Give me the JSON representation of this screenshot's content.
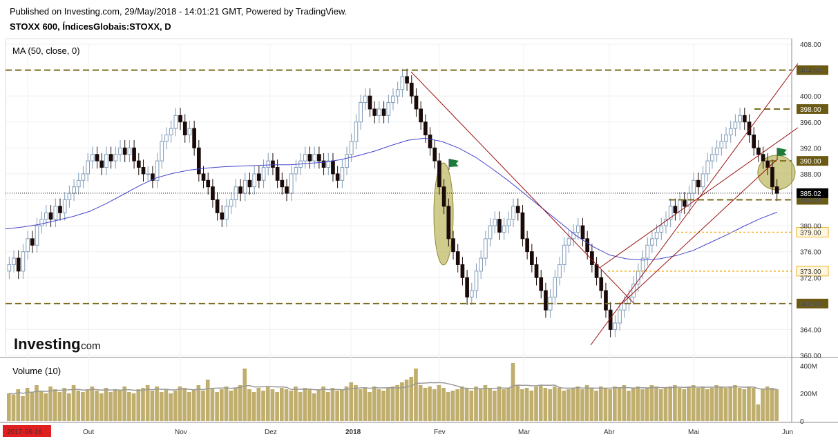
{
  "header": {
    "published": "Published on Investing.com, 29/May/2018 - 14:01:21 GMT, Powered by TradingView.",
    "symbol": "STOXX 600, ÍndicesGlobais:STOXX, D"
  },
  "logo": {
    "brand": "Investing",
    "suffix": ".com"
  },
  "colors": {
    "up_body": "#ffffff",
    "up_edge": "#7f9bb8",
    "down_body": "#1a0a0a",
    "ma": "#4444cc",
    "level_dash": "#7a6a1e",
    "level_dotted": "#f2b020",
    "channel": "#9a1010",
    "volume": "#bfae6e",
    "volume_ma": "#999999",
    "highlight": "#b5b050",
    "flag": "#1d7a3a",
    "current": "#000000"
  },
  "chart_data": [
    {
      "type": "line",
      "panel": "price",
      "title": "",
      "indicator_label": "MA (50, close, 0)",
      "ylim": [
        360,
        408
      ],
      "y_ticks": [
        "408.00",
        "404.00",
        "400.00",
        "396.00",
        "392.00",
        "388.00",
        "384.00",
        "380.00",
        "376.00",
        "372.00",
        "368.00",
        "364.00",
        "360.00"
      ],
      "x_ticks": [
        "2017-06-16",
        "Out",
        "Nov",
        "Dez",
        "2018",
        "Fev",
        "Mar",
        "Abr",
        "Mai",
        "Jun"
      ],
      "current_price": "385.02",
      "levels_dashed": [
        "404.00",
        "398.00",
        "390.00",
        "384.00",
        "368.00"
      ],
      "levels_dotted": [
        "379.00",
        "373.00"
      ],
      "grid": true,
      "series": [
        {
          "ohlc_close_approx": [
            374,
            375,
            373,
            376,
            378,
            377,
            380,
            381,
            382,
            381,
            383,
            382,
            384,
            385,
            386,
            387,
            388,
            390,
            391,
            390,
            389,
            391,
            390,
            391,
            392,
            391,
            392,
            390,
            389,
            388,
            388,
            387,
            390,
            393,
            394,
            395,
            397,
            396,
            394,
            395,
            392,
            388,
            387,
            386,
            384,
            382,
            381,
            383,
            384,
            386,
            385,
            387,
            386,
            388,
            387,
            389,
            390,
            389,
            387,
            386,
            385,
            388,
            389,
            390,
            391,
            390,
            391,
            390,
            389,
            390,
            388,
            387,
            389,
            391,
            393,
            396,
            399,
            400,
            398,
            397,
            398,
            397,
            399,
            400,
            401,
            403,
            402,
            400,
            398,
            396,
            394,
            392,
            390,
            386,
            383,
            378,
            376,
            374,
            372,
            369,
            370,
            373,
            375,
            378,
            380,
            381,
            379,
            380,
            381,
            383,
            382,
            378,
            376,
            374,
            372,
            370,
            367,
            369,
            372,
            374,
            377,
            378,
            379,
            380,
            378,
            376,
            374,
            372,
            370,
            367,
            364,
            365,
            367,
            368,
            369,
            371,
            373,
            375,
            377,
            378,
            379,
            380,
            381,
            383,
            382,
            384,
            383,
            385,
            387,
            386,
            388,
            390,
            391,
            392,
            393,
            394,
            395,
            396,
            397,
            396,
            394,
            392,
            391,
            390,
            389,
            386,
            385
          ]
        },
        {
          "name": "",
          "ma50_approx": [
            379.5,
            379.8,
            380.2,
            380.8,
            381.4,
            382.2,
            383.4,
            384.8,
            386.2,
            387.4,
            388.1,
            388.6,
            388.9,
            389.1,
            389.2,
            389.3,
            389.4,
            389.4,
            389.6,
            389.8,
            390.2,
            390.8,
            391.5,
            392.4,
            393.2,
            393.5,
            393.0,
            392.0,
            390.6,
            388.8,
            386.9,
            384.8,
            382.7,
            380.6,
            378.5,
            376.8,
            375.5,
            374.9,
            374.7,
            374.9,
            375.4,
            376.2,
            377.4,
            378.6,
            379.9,
            381.1,
            382.1
          ]
        }
      ]
    },
    {
      "type": "bar",
      "panel": "volume",
      "indicator_label": "Volume (10)",
      "ylim": [
        0,
        400
      ],
      "y_ticks": [
        "400M",
        "200M",
        "0"
      ],
      "values_approx": [
        200,
        190,
        230,
        180,
        240,
        210,
        260,
        220,
        200,
        250,
        230,
        210,
        240,
        200,
        260,
        220,
        210,
        230,
        250,
        220,
        200,
        240,
        210,
        230,
        220,
        250,
        210,
        200,
        230,
        240,
        260,
        220,
        250,
        210,
        230,
        200,
        220,
        250,
        240,
        210,
        230,
        260,
        220,
        300,
        240,
        210,
        230,
        250,
        220,
        240,
        260,
        380,
        230,
        210,
        240,
        220,
        250,
        230,
        210,
        240,
        230,
        220,
        250,
        210,
        240,
        230,
        200,
        230,
        250,
        210,
        240,
        220,
        230,
        250,
        280,
        260,
        230,
        240,
        210,
        250,
        230,
        220,
        240,
        250,
        260,
        280,
        300,
        320,
        380,
        260,
        240,
        250,
        230,
        260,
        240,
        210,
        220,
        230,
        250,
        240,
        220,
        250,
        230,
        260,
        240,
        220,
        250,
        230,
        240,
        420,
        260,
        230,
        240,
        220,
        250,
        260,
        240,
        230,
        250,
        240,
        220,
        230,
        240,
        250,
        230,
        260,
        240,
        220,
        250,
        240,
        230,
        250,
        240,
        260,
        220,
        240,
        250,
        230,
        240,
        260,
        250,
        230,
        240,
        250,
        260,
        240,
        230,
        250,
        260,
        240,
        250,
        230,
        240,
        260,
        250,
        240,
        250,
        260,
        240,
        230,
        250,
        240,
        120,
        230,
        250,
        240,
        230
      ]
    }
  ]
}
